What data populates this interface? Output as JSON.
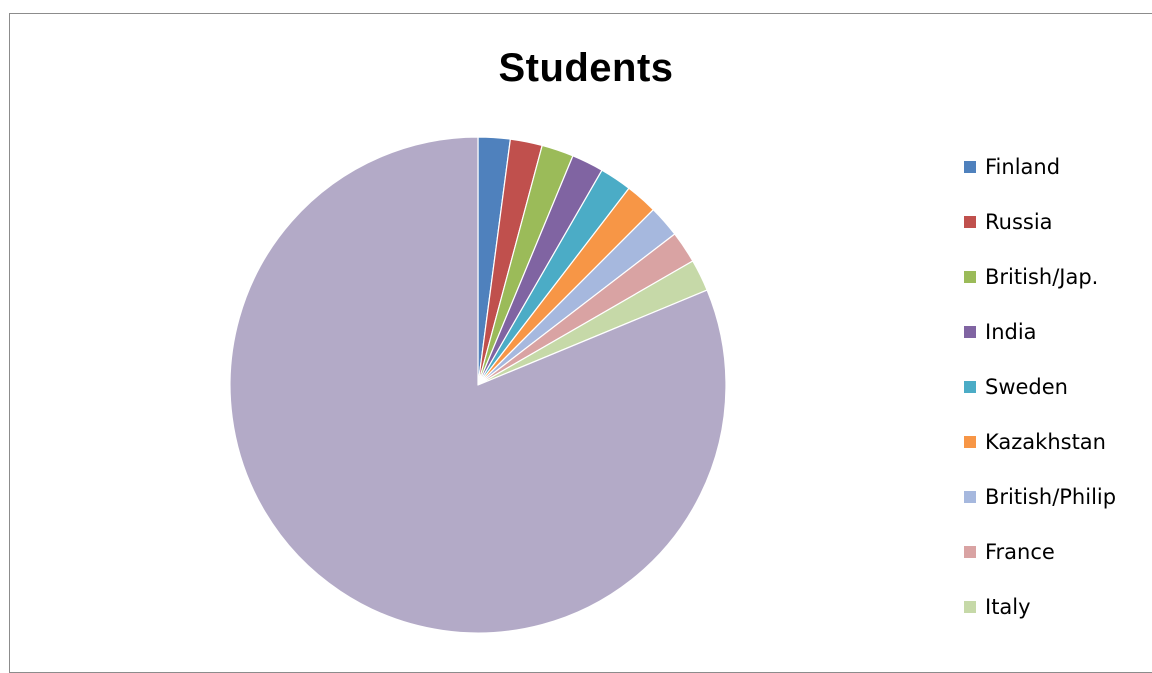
{
  "chart_data": {
    "type": "pie",
    "title": "Students",
    "legend_position": "right",
    "start_angle_deg": 0,
    "direction": "clockwise",
    "slices": [
      {
        "label": "Finland",
        "value": 1,
        "color": "#4F81BD"
      },
      {
        "label": "Russia",
        "value": 1,
        "color": "#C0504D"
      },
      {
        "label": "British/Jap.",
        "value": 1,
        "color": "#9BBB59"
      },
      {
        "label": "India",
        "value": 1,
        "color": "#8064A2"
      },
      {
        "label": "Sweden",
        "value": 1,
        "color": "#4BACC6"
      },
      {
        "label": "Kazakhstan",
        "value": 1,
        "color": "#F79646"
      },
      {
        "label": "British/Philip",
        "value": 1,
        "color": "#A6B8DE"
      },
      {
        "label": "France",
        "value": 1,
        "color": "#D9A3A3"
      },
      {
        "label": "Italy",
        "value": 1,
        "color": "#C6D9A8"
      },
      {
        "label": "",
        "value": 39,
        "color": "#B3AAC7"
      }
    ]
  }
}
